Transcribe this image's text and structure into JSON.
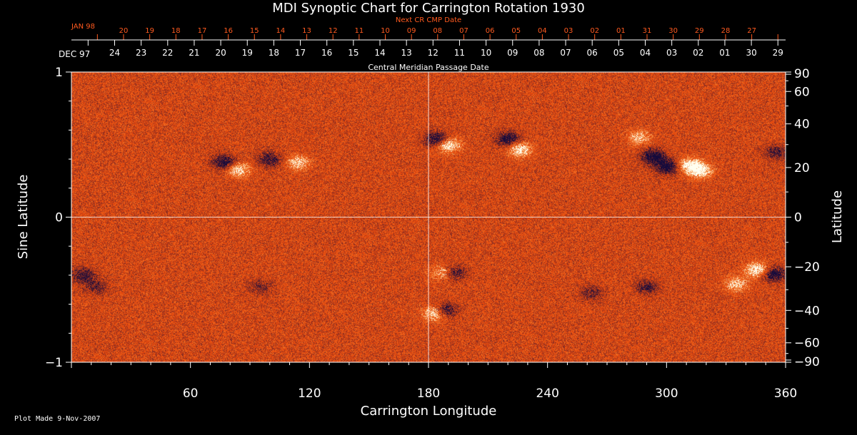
{
  "chart_data": {
    "type": "heatmap",
    "title": "MDI Synoptic Chart for Carrington Rotation 1930",
    "xlabel": "Carrington Longitude",
    "ylabel_left": "Sine Latitude",
    "ylabel_right": "Latitude",
    "xlim": [
      0,
      360
    ],
    "ylim": [
      -1,
      1
    ],
    "x_ticks": [
      60,
      120,
      180,
      240,
      300,
      360
    ],
    "y_ticks_left": [
      {
        "value": 1,
        "label": "1"
      },
      {
        "value": 0,
        "label": "0"
      },
      {
        "value": -1,
        "label": "−1"
      }
    ],
    "y_ticks_right": [
      90,
      60,
      40,
      20,
      0,
      -20,
      -40,
      -60,
      -90
    ],
    "top_axis_title": "Central Meridian Passage Date",
    "top_axis_month_label": "DEC 97",
    "top_axis_dates": [
      "24",
      "23",
      "22",
      "21",
      "20",
      "19",
      "18",
      "17",
      "16",
      "15",
      "14",
      "13",
      "12",
      "11",
      "10",
      "09",
      "08",
      "07",
      "06",
      "05",
      "04",
      "03",
      "02",
      "01",
      "30",
      "29"
    ],
    "next_axis_title": "Next CR CMP Date",
    "next_axis_month_label": "JAN 98",
    "next_axis_dates": [
      "20",
      "19",
      "18",
      "17",
      "16",
      "15",
      "14",
      "13",
      "12",
      "11",
      "10",
      "09",
      "08",
      "07",
      "06",
      "05",
      "04",
      "03",
      "02",
      "01",
      "31",
      "30",
      "29",
      "28",
      "27"
    ],
    "footer": "Plot Made  9-Nov-2007",
    "colors": {
      "background": "#000000",
      "map_base": "#e2480f",
      "positive_flux": "#ffffff",
      "negative_flux": "#140a3c",
      "next_axis": "#ff5a1f",
      "text": "#ffffff"
    },
    "active_regions": [
      {
        "lon": 77,
        "sinlat": 0.38,
        "polarity": "negative",
        "strength": 0.9
      },
      {
        "lon": 84,
        "sinlat": 0.33,
        "polarity": "positive",
        "strength": 0.8
      },
      {
        "lon": 100,
        "sinlat": 0.4,
        "polarity": "negative",
        "strength": 0.7
      },
      {
        "lon": 114,
        "sinlat": 0.38,
        "polarity": "positive",
        "strength": 0.7
      },
      {
        "lon": 184,
        "sinlat": 0.54,
        "polarity": "negative",
        "strength": 0.9
      },
      {
        "lon": 190,
        "sinlat": 0.5,
        "polarity": "positive",
        "strength": 0.9
      },
      {
        "lon": 220,
        "sinlat": 0.54,
        "polarity": "negative",
        "strength": 0.9
      },
      {
        "lon": 226,
        "sinlat": 0.47,
        "polarity": "positive",
        "strength": 0.9
      },
      {
        "lon": 293,
        "sinlat": 0.42,
        "polarity": "negative",
        "strength": 1.0
      },
      {
        "lon": 300,
        "sinlat": 0.35,
        "polarity": "negative",
        "strength": 1.0
      },
      {
        "lon": 312,
        "sinlat": 0.36,
        "polarity": "positive",
        "strength": 1.0
      },
      {
        "lon": 317,
        "sinlat": 0.32,
        "polarity": "positive",
        "strength": 0.9
      },
      {
        "lon": 286,
        "sinlat": 0.55,
        "polarity": "positive",
        "strength": 0.6
      },
      {
        "lon": 355,
        "sinlat": 0.45,
        "polarity": "negative",
        "strength": 0.6
      },
      {
        "lon": 6,
        "sinlat": -0.4,
        "polarity": "negative",
        "strength": 0.7
      },
      {
        "lon": 12,
        "sinlat": -0.48,
        "polarity": "negative",
        "strength": 0.5
      },
      {
        "lon": 187,
        "sinlat": -0.38,
        "polarity": "positive",
        "strength": 0.6
      },
      {
        "lon": 193,
        "sinlat": -0.38,
        "polarity": "negative",
        "strength": 0.7
      },
      {
        "lon": 183,
        "sinlat": -0.66,
        "polarity": "positive",
        "strength": 0.9
      },
      {
        "lon": 188,
        "sinlat": -0.64,
        "polarity": "negative",
        "strength": 0.8
      },
      {
        "lon": 290,
        "sinlat": -0.48,
        "polarity": "negative",
        "strength": 0.6
      },
      {
        "lon": 345,
        "sinlat": -0.36,
        "polarity": "positive",
        "strength": 0.9
      },
      {
        "lon": 354,
        "sinlat": -0.39,
        "polarity": "negative",
        "strength": 0.9
      },
      {
        "lon": 335,
        "sinlat": -0.46,
        "polarity": "positive",
        "strength": 0.7
      },
      {
        "lon": 95,
        "sinlat": -0.48,
        "polarity": "negative",
        "strength": 0.4
      },
      {
        "lon": 262,
        "sinlat": -0.52,
        "polarity": "negative",
        "strength": 0.5
      }
    ]
  }
}
